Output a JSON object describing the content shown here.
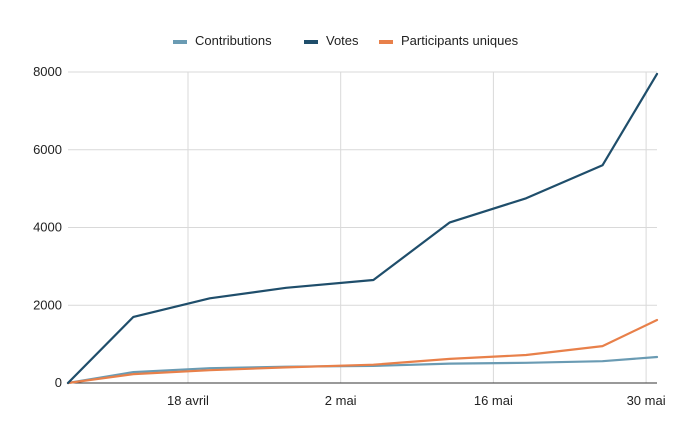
{
  "chart_data": {
    "type": "line",
    "title": "",
    "xlabel": "",
    "ylabel": "",
    "ylim": [
      0,
      8000
    ],
    "y_ticks": [
      0,
      2000,
      4000,
      6000,
      8000
    ],
    "y_tick_labels": [
      "0",
      "2000",
      "4000",
      "6000",
      "8000"
    ],
    "x_range": [
      "2023-04-07",
      "2023-05-31"
    ],
    "x_ticks": [
      "2023-04-18",
      "2023-05-02",
      "2023-05-16",
      "2023-05-30"
    ],
    "x_tick_labels": [
      "18 avril",
      "2 mai",
      "16 mai",
      "30 mai"
    ],
    "grid": true,
    "legend_position": "top",
    "x": [
      "2023-04-07",
      "2023-04-13",
      "2023-04-20",
      "2023-04-27",
      "2023-05-05",
      "2023-05-12",
      "2023-05-19",
      "2023-05-26",
      "2023-05-31"
    ],
    "series": [
      {
        "name": "Contributions",
        "color": "#6a9bb3",
        "values": [
          0,
          280,
          380,
          420,
          440,
          500,
          520,
          560,
          670
        ]
      },
      {
        "name": "Votes",
        "color": "#1f4e6b",
        "values": [
          0,
          1700,
          2180,
          2450,
          2650,
          4130,
          4750,
          5600,
          7950
        ]
      },
      {
        "name": "Participants uniques",
        "color": "#e8804a",
        "values": [
          0,
          230,
          330,
          400,
          470,
          620,
          720,
          950,
          1620
        ]
      }
    ]
  }
}
